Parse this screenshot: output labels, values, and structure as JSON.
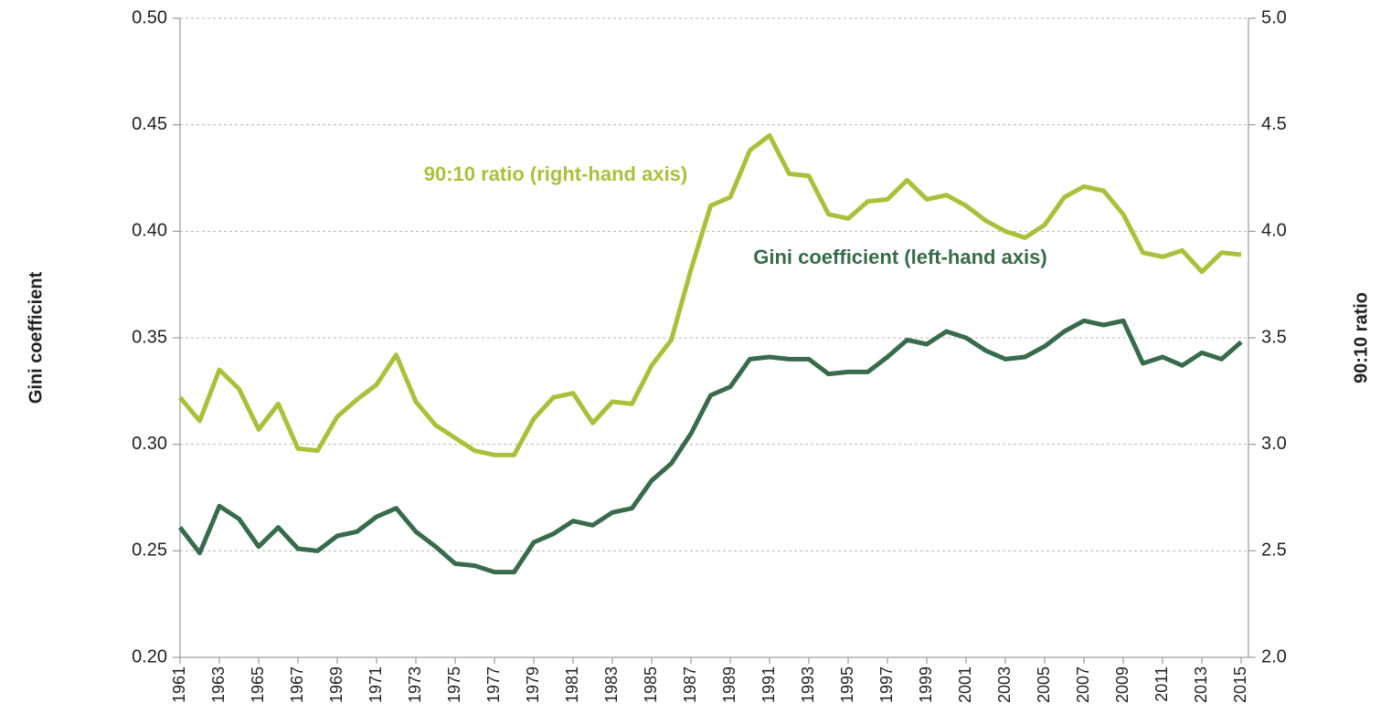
{
  "chart_data": {
    "type": "line",
    "ylabel": "Gini coefficient",
    "y2label": "90:10 ratio",
    "x": [
      1961,
      1962,
      1963,
      1964,
      1965,
      1966,
      1967,
      1968,
      1969,
      1970,
      1971,
      1972,
      1973,
      1974,
      1975,
      1976,
      1977,
      1978,
      1979,
      1980,
      1981,
      1982,
      1983,
      1984,
      1985,
      1986,
      1987,
      1988,
      1989,
      1990,
      1991,
      1992,
      1993,
      1994,
      1995,
      1996,
      1997,
      1998,
      1999,
      2000,
      2001,
      2002,
      2003,
      2004,
      2005,
      2006,
      2007,
      2008,
      2009,
      2010,
      2011,
      2012,
      2013,
      2014,
      2015
    ],
    "xlim": [
      1961,
      2015
    ],
    "xticks": [
      1961,
      1963,
      1965,
      1967,
      1969,
      1971,
      1973,
      1975,
      1977,
      1979,
      1981,
      1983,
      1985,
      1987,
      1989,
      1991,
      1993,
      1995,
      1997,
      1999,
      2001,
      2003,
      2005,
      2007,
      2009,
      2011,
      2013,
      2015
    ],
    "ylim": [
      0.2,
      0.5
    ],
    "yticks": [
      {
        "value": 0.2,
        "label": "0.20"
      },
      0.25,
      {
        "value": 0.3,
        "label": "0.30"
      },
      0.35,
      {
        "value": 0.4,
        "label": "0.40"
      },
      0.45,
      {
        "value": 0.5,
        "label": "0.50"
      }
    ],
    "y2lim": [
      2,
      5
    ],
    "y2ticks": [
      {
        "value": 2,
        "label": "2.0"
      },
      2.5,
      {
        "value": 3,
        "label": "3.0"
      },
      3.5,
      {
        "value": 4,
        "label": "4.0"
      },
      4.5,
      {
        "value": 5,
        "label": "5.0"
      }
    ],
    "grid": true,
    "series": [
      {
        "name": "Gini coefficient (left-hand axis)",
        "color": "#376b4b",
        "values": [
          0.261,
          0.249,
          0.271,
          0.265,
          0.252,
          0.261,
          0.251,
          0.25,
          0.257,
          0.259,
          0.266,
          0.27,
          0.259,
          0.252,
          0.244,
          0.243,
          0.24,
          0.24,
          0.254,
          0.258,
          0.264,
          0.262,
          0.268,
          0.27,
          0.283,
          0.291,
          0.305,
          0.323,
          0.327,
          0.34,
          0.341,
          0.34,
          0.34,
          0.333,
          0.334,
          0.334,
          0.341,
          0.349,
          0.347,
          0.353,
          0.35,
          0.344,
          0.34,
          0.341,
          0.346,
          0.353,
          0.358,
          0.356,
          0.358,
          0.338,
          0.341,
          0.337,
          0.343,
          0.34,
          0.348
        ]
      },
      {
        "name": "90:10 ratio (right-hand axis)",
        "color": "#a9c13a",
        "axis": "y2",
        "values": [
          3.22,
          3.11,
          3.35,
          3.26,
          3.07,
          3.19,
          2.98,
          2.97,
          3.13,
          3.21,
          3.28,
          3.42,
          3.2,
          3.09,
          3.03,
          2.97,
          2.95,
          2.95,
          3.12,
          3.22,
          3.24,
          3.1,
          3.2,
          3.19,
          3.37,
          3.49,
          3.82,
          4.12,
          4.16,
          4.38,
          4.45,
          4.27,
          4.26,
          4.08,
          4.06,
          4.14,
          4.15,
          4.24,
          4.15,
          4.17,
          4.12,
          4.05,
          4.0,
          3.97,
          4.03,
          4.16,
          4.21,
          4.19,
          4.08,
          3.9,
          3.88,
          3.91,
          3.81,
          3.9,
          3.89
        ]
      }
    ]
  }
}
